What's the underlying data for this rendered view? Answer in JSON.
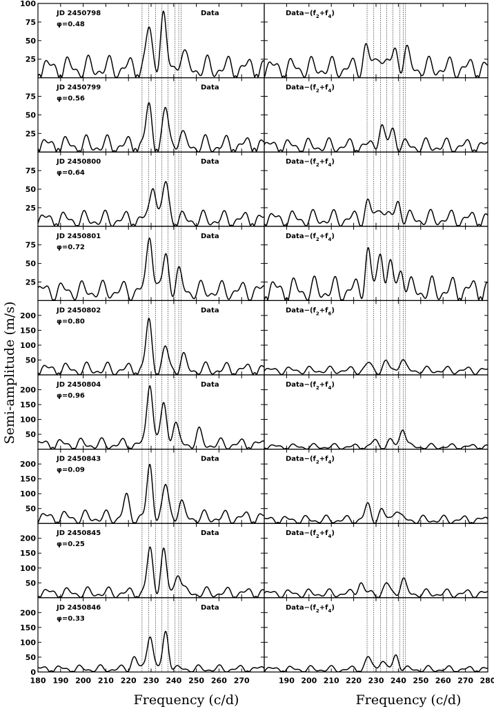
{
  "chart_data": {
    "type": "line",
    "ylabel": "Semi-amplitude (m/s)",
    "xlabel": "Frequency (c/d)",
    "x_unit": "c/d",
    "columns": [
      {
        "xlim": [
          180,
          280
        ],
        "xticks": [
          180,
          190,
          200,
          210,
          220,
          230,
          240,
          250,
          260,
          270
        ]
      },
      {
        "xlim": [
          180,
          280
        ],
        "xticks": [
          190,
          200,
          210,
          220,
          230,
          240,
          250,
          260,
          270,
          280
        ]
      }
    ],
    "reference_frequencies": [
      226.0,
      229.0,
      232.0,
      234.8,
      237.5,
      240.6,
      242.2,
      243.2
    ],
    "grid": false,
    "panels": [
      {
        "jd": "JD 2450798",
        "phase": "φ=0.48",
        "left_label": "Data",
        "right_label": "Data−(f2+f4)",
        "right_sub_a": "2",
        "right_sub_b": "4",
        "ylim": [
          0,
          100
        ],
        "yticks": [
          25,
          50,
          75,
          100
        ],
        "left": {
          "peaks": [
            [
              229.0,
              50
            ],
            [
              235.2,
              70
            ],
            [
              243.5,
              22
            ]
          ],
          "base": 13,
          "ripple": 11,
          "phase": 0.3
        },
        "right": {
          "peaks": [
            [
              225.5,
              28
            ],
            [
              231.8,
              24
            ],
            [
              238.5,
              24
            ],
            [
              243.3,
              20
            ]
          ],
          "base": 13,
          "ripple": 10,
          "phase": 1.1
        }
      },
      {
        "jd": "JD 2450799",
        "phase": "φ=0.56",
        "left_label": "Data",
        "right_label": "Data−(f2+f4)",
        "right_sub_a": "2",
        "right_sub_b": "4",
        "ylim": [
          0,
          100
        ],
        "yticks": [
          25,
          50,
          75
        ],
        "left": {
          "peaks": [
            [
              229.0,
              50
            ],
            [
              236.5,
              45
            ],
            [
              242.8,
              15
            ]
          ],
          "base": 9,
          "ripple": 9,
          "phase": 0.9
        },
        "right": {
          "peaks": [
            [
              232.3,
              27
            ],
            [
              237.6,
              22
            ]
          ],
          "base": 8,
          "ripple": 7,
          "phase": 2.0
        }
      },
      {
        "jd": "JD 2450800",
        "phase": "φ=0.64",
        "left_label": "Data",
        "right_label": "Data−(f2+f4)",
        "right_sub_a": "2",
        "right_sub_b": "4",
        "ylim": [
          0,
          100
        ],
        "yticks": [
          25,
          50,
          75
        ],
        "left": {
          "peaks": [
            [
              231.0,
              53
            ],
            [
              236.5,
              49
            ]
          ],
          "base": 9,
          "ripple": 8,
          "phase": 1.5
        },
        "right": {
          "peaks": [
            [
              226.3,
              22
            ],
            [
              232.5,
              21
            ],
            [
              240.0,
              23
            ]
          ],
          "base": 10,
          "ripple": 8,
          "phase": 0.6
        }
      },
      {
        "jd": "JD 2450801",
        "phase": "φ=0.72",
        "left_label": "Data",
        "right_label": "Data−(f2+f4)",
        "right_sub_a": "2",
        "right_sub_b": "4",
        "ylim": [
          0,
          100
        ],
        "yticks": [
          25,
          50,
          75
        ],
        "left": {
          "peaks": [
            [
              229.5,
              80
            ],
            [
              236.5,
              46
            ],
            [
              242.0,
              22
            ]
          ],
          "base": 13,
          "ripple": 9,
          "phase": 2.2
        },
        "right": {
          "peaks": [
            [
              226.3,
              52
            ],
            [
              232.3,
              55
            ],
            [
              236.5,
              27
            ],
            [
              241.5,
              31
            ]
          ],
          "base": 14,
          "ripple": 12,
          "phase": 0.2
        }
      },
      {
        "jd": "JD 2450802",
        "phase": "φ=0.80",
        "left_label": "Data",
        "right_label": "Data−(f2+f6)",
        "right_sub_a": "2",
        "right_sub_b": "6",
        "ylim": [
          0,
          250
        ],
        "yticks": [
          50,
          100,
          150,
          200
        ],
        "left": {
          "peaks": [
            [
              229.0,
              160
            ],
            [
              236.5,
              67
            ],
            [
              244.0,
              38
            ]
          ],
          "base": 18,
          "ripple": 16,
          "phase": 0.8
        },
        "right": {
          "peaks": [
            [
              226.5,
              23
            ],
            [
              234.5,
              26
            ],
            [
              241.5,
              38
            ]
          ],
          "base": 15,
          "ripple": 9,
          "phase": 1.7
        }
      },
      {
        "jd": "JD 2450804",
        "phase": "φ=0.96",
        "left_label": "Data",
        "right_label": "Data−(f2+f4)",
        "right_sub_a": "2",
        "right_sub_b": "4",
        "ylim": [
          0,
          250
        ],
        "yticks": [
          50,
          100,
          150,
          200
        ],
        "left": {
          "peaks": [
            [
              229.5,
              218
            ],
            [
              235.5,
              135
            ],
            [
              240.5,
              75
            ],
            [
              251.0,
              38
            ]
          ],
          "base": 16,
          "ripple": 14,
          "phase": 2.5
        },
        "right": {
          "peaks": [
            [
              229.5,
              20
            ],
            [
              236.5,
              20
            ],
            [
              242.0,
              65
            ]
          ],
          "base": 8,
          "ripple": 7,
          "phase": 0.4
        }
      },
      {
        "jd": "JD 2450843",
        "phase": "φ=0.09",
        "left_label": "Data",
        "right_label": "Data−(f2+f4)",
        "right_sub_a": "2",
        "right_sub_b": "4",
        "ylim": [
          0,
          250
        ],
        "yticks": [
          50,
          100,
          150,
          200
        ],
        "left": {
          "peaks": [
            [
              229.5,
              168
            ],
            [
              236.5,
              105
            ],
            [
              243.0,
              45
            ],
            [
              219.0,
              62
            ]
          ],
          "base": 20,
          "ripple": 16,
          "phase": 1.2
        },
        "right": {
          "peaks": [
            [
              226.3,
              47
            ],
            [
              232.5,
              30
            ],
            [
              239.0,
              40
            ]
          ],
          "base": 12,
          "ripple": 10,
          "phase": 2.8
        }
      },
      {
        "jd": "JD 2450845",
        "phase": "φ=0.25",
        "left_label": "Data",
        "right_label": "Data−(f2+f4)",
        "right_sub_a": "2",
        "right_sub_b": "4",
        "ylim": [
          0,
          250
        ],
        "yticks": [
          50,
          100,
          150,
          200
        ],
        "left": {
          "peaks": [
            [
              229.5,
              145
            ],
            [
              235.5,
              138
            ],
            [
              242.0,
              75
            ]
          ],
          "base": 16,
          "ripple": 13,
          "phase": 0.5
        },
        "right": {
          "peaks": [
            [
              223.0,
              38
            ],
            [
              235.0,
              30
            ],
            [
              242.0,
              45
            ]
          ],
          "base": 14,
          "ripple": 10,
          "phase": 1.9
        }
      },
      {
        "jd": "JD 2450846",
        "phase": "φ=0.33",
        "left_label": "Data",
        "right_label": "Data−(f2+f4)",
        "right_sub_a": "2",
        "right_sub_b": "4",
        "ylim": [
          0,
          250
        ],
        "yticks": [
          0,
          50,
          100,
          150,
          200
        ],
        "left": {
          "peaks": [
            [
              229.5,
              122
            ],
            [
              236.5,
              125
            ],
            [
              222.5,
              40
            ]
          ],
          "base": 10,
          "ripple": 9,
          "phase": 2.9
        },
        "right": {
          "peaks": [
            [
              226.5,
              40
            ],
            [
              232.5,
              33
            ],
            [
              239.0,
              48
            ]
          ],
          "base": 9,
          "ripple": 8,
          "phase": 1.3
        }
      }
    ]
  }
}
